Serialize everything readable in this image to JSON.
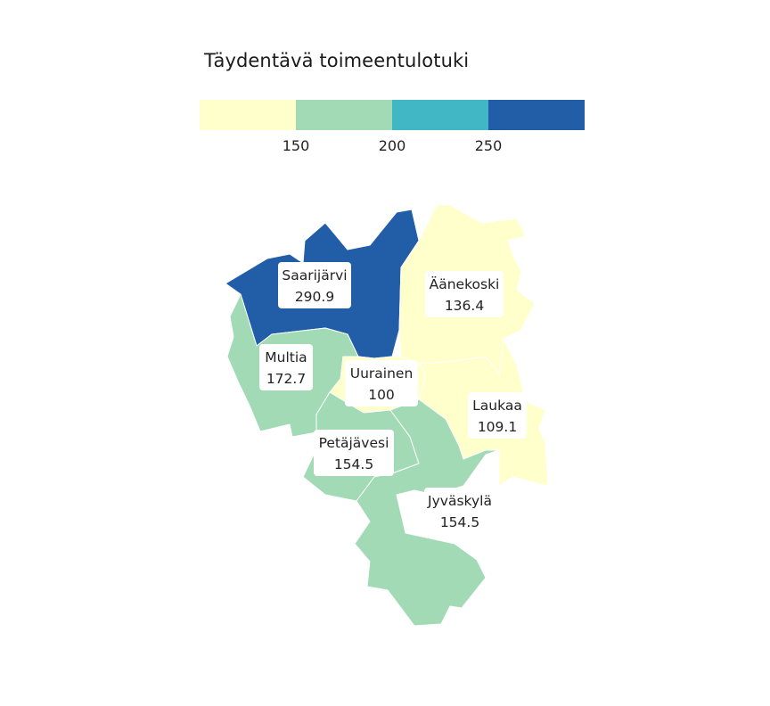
{
  "legend": {
    "title": "Täydentävä toimeentulotuki",
    "colors": [
      "#ffffcc",
      "#a1dab4",
      "#41b6c4",
      "#225ea8"
    ],
    "ticks": [
      "150",
      "200",
      "250"
    ]
  },
  "municipalities": [
    {
      "name": "Saarijärvi",
      "value": "290.9",
      "color": "#225ea8"
    },
    {
      "name": "Äänekoski",
      "value": "136.4",
      "color": "#ffffcc"
    },
    {
      "name": "Multia",
      "value": "172.7",
      "color": "#a1dab4"
    },
    {
      "name": "Uurainen",
      "value": "100",
      "color": "#ffffcc"
    },
    {
      "name": "Laukaa",
      "value": "109.1",
      "color": "#ffffcc"
    },
    {
      "name": "Petäjävesi",
      "value": "154.5",
      "color": "#a1dab4"
    },
    {
      "name": "Jyväskylä",
      "value": "154.5",
      "color": "#a1dab4"
    }
  ]
}
